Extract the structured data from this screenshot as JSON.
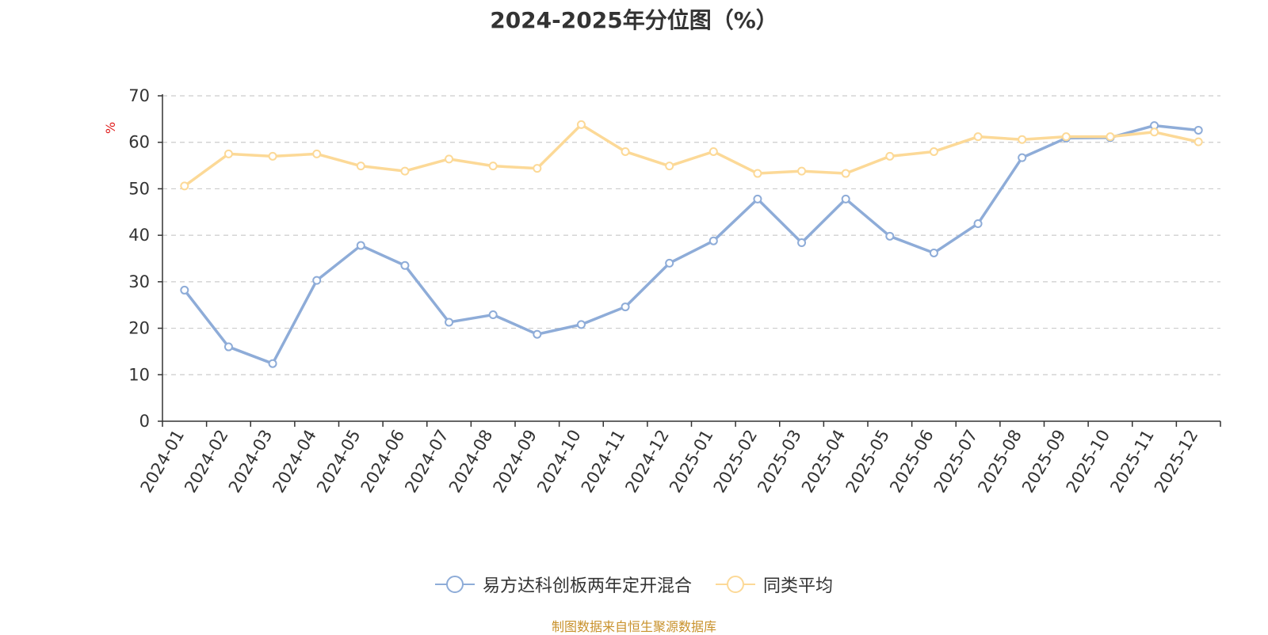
{
  "chart_data": {
    "type": "line",
    "title": "2024-2025年分位图（%）",
    "ylabel": "%",
    "xlabel": "",
    "ylim": [
      0,
      70
    ],
    "yticks": [
      0,
      10,
      20,
      30,
      40,
      50,
      60,
      70
    ],
    "grid": true,
    "legend_position": "bottom",
    "categories": [
      "2024-01",
      "2024-02",
      "2024-03",
      "2024-04",
      "2024-05",
      "2024-06",
      "2024-07",
      "2024-08",
      "2024-09",
      "2024-10",
      "2024-11",
      "2024-12",
      "2025-01",
      "2025-02",
      "2025-03",
      "2025-04",
      "2025-05",
      "2025-06",
      "2025-07",
      "2025-08",
      "2025-09",
      "2025-10",
      "2025-11",
      "2025-12"
    ],
    "series": [
      {
        "name": "易方达科创板两年定开混合",
        "color": "#8eacd8",
        "values": [
          28.2,
          16.0,
          12.4,
          30.3,
          37.8,
          33.5,
          21.3,
          22.9,
          18.7,
          20.8,
          24.6,
          34.0,
          38.8,
          47.8,
          38.4,
          47.8,
          39.8,
          36.2,
          42.5,
          56.7,
          60.9,
          61.0,
          63.6,
          62.6
        ]
      },
      {
        "name": "同类平均",
        "color": "#fcd997",
        "values": [
          50.6,
          57.5,
          57.0,
          57.5,
          54.9,
          53.8,
          56.4,
          54.9,
          54.4,
          63.8,
          58.0,
          54.9,
          58.0,
          53.3,
          53.8,
          53.3,
          57.0,
          58.0,
          61.2,
          60.6,
          61.2,
          61.2,
          62.2,
          60.1
        ]
      }
    ]
  },
  "source_note": "制图数据来自恒生聚源数据库"
}
